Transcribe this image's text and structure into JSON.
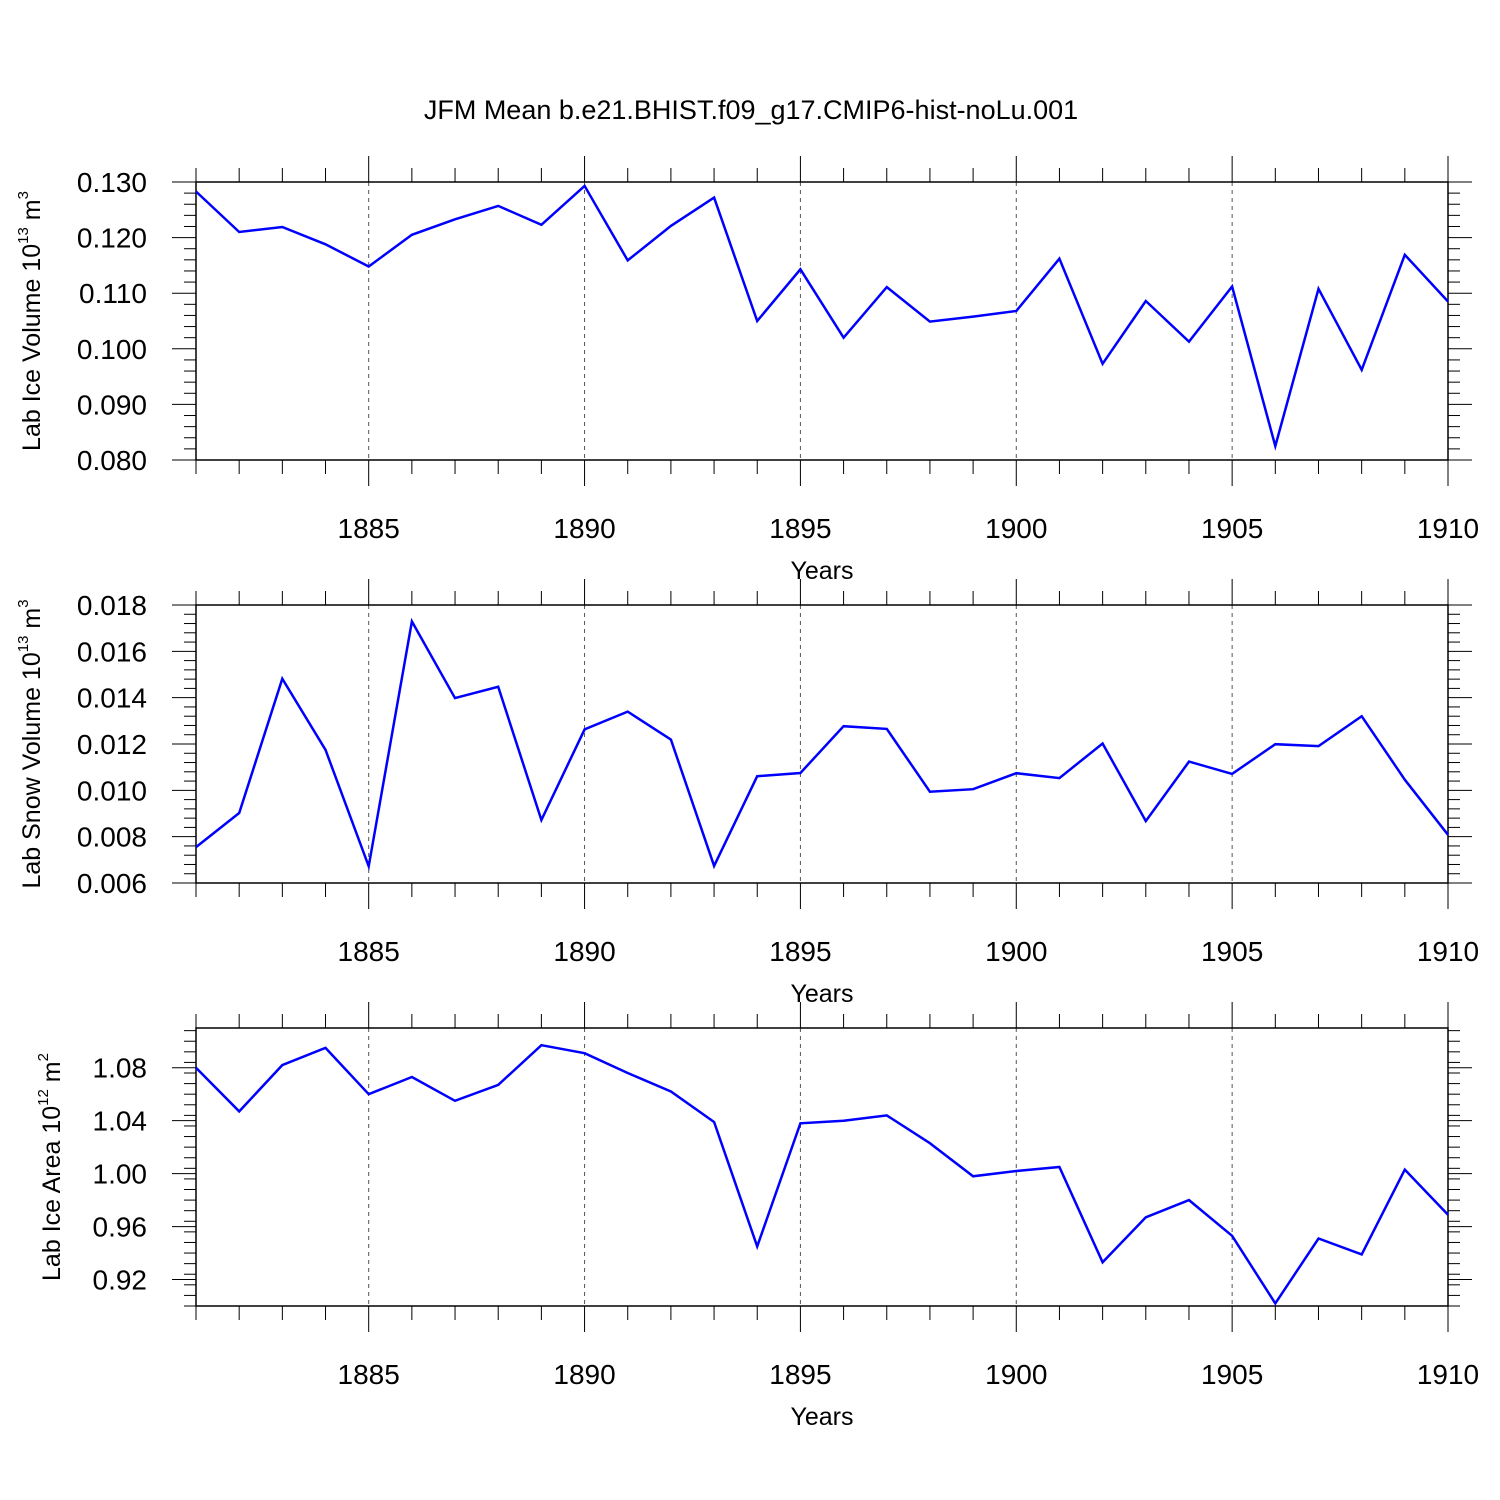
{
  "title": "JFM Mean b.e21.BHIST.f09_g17.CMIP6-hist-noLu.001",
  "chart_data": [
    {
      "type": "line",
      "xlabel": "Years",
      "ylabel": {
        "base": "Lab Ice Volume 10",
        "exp": "13",
        "unit": " m",
        "unit_exp": "3"
      },
      "xlim": [
        1881,
        1910
      ],
      "ylim": [
        0.08,
        0.13
      ],
      "y_major_ticks": [
        0.08,
        0.09,
        0.1,
        0.11,
        0.12,
        0.13
      ],
      "y_tick_labels": [
        "0.080",
        "0.090",
        "0.100",
        "0.110",
        "0.120",
        "0.130"
      ],
      "y_minor_step": 0.002,
      "x_major_ticks": [
        1885,
        1890,
        1895,
        1900,
        1905,
        1910
      ],
      "x_tick_labels": [
        "1885",
        "1890",
        "1895",
        "1900",
        "1905",
        "1910"
      ],
      "grid": "dashed vertical at major x ticks",
      "color": "#0000ff",
      "x": [
        1881,
        1882,
        1883,
        1884,
        1885,
        1886,
        1887,
        1888,
        1889,
        1890,
        1891,
        1892,
        1893,
        1894,
        1895,
        1896,
        1897,
        1898,
        1899,
        1900,
        1901,
        1902,
        1903,
        1904,
        1905,
        1906,
        1907,
        1908,
        1909,
        1910
      ],
      "values": [
        0.1283,
        0.121,
        0.1219,
        0.1188,
        0.1148,
        0.1205,
        0.1233,
        0.1257,
        0.1223,
        0.1293,
        0.1159,
        0.1221,
        0.1272,
        0.105,
        0.1143,
        0.102,
        0.1111,
        0.1049,
        0.1058,
        0.1068,
        0.1162,
        0.0973,
        0.1086,
        0.1013,
        0.1112,
        0.0825,
        0.1108,
        0.0962,
        0.1169,
        0.1085
      ]
    },
    {
      "type": "line",
      "xlabel": "Years",
      "ylabel": {
        "base": "Lab Snow Volume 10",
        "exp": "13",
        "unit": " m",
        "unit_exp": "3"
      },
      "xlim": [
        1881,
        1910
      ],
      "ylim": [
        0.006,
        0.018
      ],
      "y_major_ticks": [
        0.006,
        0.008,
        0.01,
        0.012,
        0.014,
        0.016,
        0.018
      ],
      "y_tick_labels": [
        "0.006",
        "0.008",
        "0.010",
        "0.012",
        "0.014",
        "0.016",
        "0.018"
      ],
      "y_minor_step": 0.0004,
      "x_major_ticks": [
        1885,
        1890,
        1895,
        1900,
        1905,
        1910
      ],
      "x_tick_labels": [
        "1885",
        "1890",
        "1895",
        "1900",
        "1905",
        "1910"
      ],
      "grid": "dashed vertical at major x ticks",
      "color": "#0000ff",
      "x": [
        1881,
        1882,
        1883,
        1884,
        1885,
        1886,
        1887,
        1888,
        1889,
        1890,
        1891,
        1892,
        1893,
        1894,
        1895,
        1896,
        1897,
        1898,
        1899,
        1900,
        1901,
        1902,
        1903,
        1904,
        1905,
        1906,
        1907,
        1908,
        1909,
        1910
      ],
      "values": [
        0.00755,
        0.00902,
        0.01482,
        0.01175,
        0.00672,
        0.01729,
        0.01398,
        0.01447,
        0.00872,
        0.01263,
        0.0134,
        0.01219,
        0.00674,
        0.01061,
        0.01075,
        0.01277,
        0.01265,
        0.00994,
        0.01005,
        0.01074,
        0.01053,
        0.01202,
        0.00867,
        0.01124,
        0.01071,
        0.01199,
        0.01191,
        0.0132,
        0.01046,
        0.00808
      ]
    },
    {
      "type": "line",
      "xlabel": "Years",
      "ylabel": {
        "base": "Lab Ice Area 10",
        "exp": "12",
        "unit": " m",
        "unit_exp": "2"
      },
      "xlim": [
        1881,
        1910
      ],
      "ylim": [
        0.9,
        1.11
      ],
      "y_major_ticks": [
        0.92,
        0.96,
        1.0,
        1.04,
        1.08
      ],
      "y_tick_labels": [
        "0.92",
        "0.96",
        "1.00",
        "1.04",
        "1.08"
      ],
      "y_minor_step": 0.008,
      "x_major_ticks": [
        1885,
        1890,
        1895,
        1900,
        1905,
        1910
      ],
      "x_tick_labels": [
        "1885",
        "1890",
        "1895",
        "1900",
        "1905",
        "1910"
      ],
      "grid": "dashed vertical at major x ticks",
      "color": "#0000ff",
      "x": [
        1881,
        1882,
        1883,
        1884,
        1885,
        1886,
        1887,
        1888,
        1889,
        1890,
        1891,
        1892,
        1893,
        1894,
        1895,
        1896,
        1897,
        1898,
        1899,
        1900,
        1901,
        1902,
        1903,
        1904,
        1905,
        1906,
        1907,
        1908,
        1909,
        1910
      ],
      "values": [
        1.08,
        1.047,
        1.082,
        1.095,
        1.06,
        1.073,
        1.055,
        1.067,
        1.097,
        1.091,
        1.076,
        1.062,
        1.039,
        0.945,
        1.038,
        1.04,
        1.044,
        1.023,
        0.998,
        1.002,
        1.005,
        0.933,
        0.967,
        0.98,
        0.953,
        0.902,
        0.951,
        0.939,
        1.003,
        0.969
      ]
    }
  ]
}
